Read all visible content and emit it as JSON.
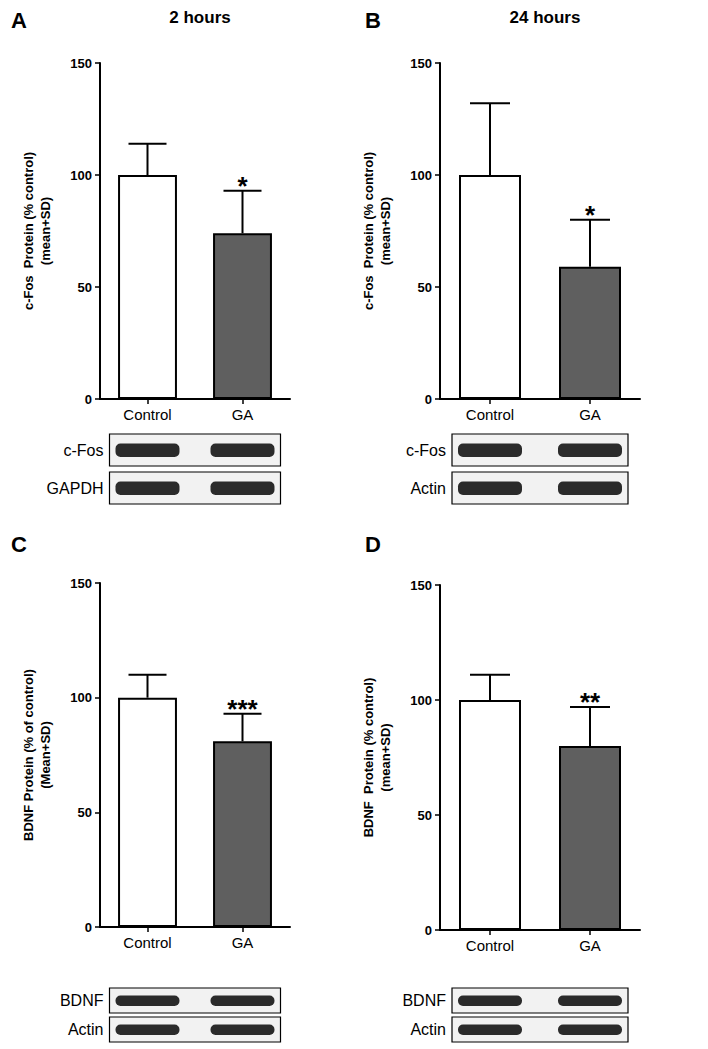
{
  "chart_data": [
    {
      "panel": "A",
      "type": "bar",
      "title": "2 hours",
      "ylabel": [
        "c-Fos  Protein (% control)",
        "(mean+SD)"
      ],
      "categories": [
        "Control",
        "GA"
      ],
      "values": [
        100,
        74
      ],
      "errors": [
        14,
        19
      ],
      "colors": [
        "#ffffff",
        "#5f5f5f"
      ],
      "ylim": [
        0,
        150
      ],
      "yticks": [
        0,
        50,
        100,
        150
      ],
      "grid": false,
      "annotations": [
        {
          "category": "GA",
          "text": "*"
        }
      ],
      "blots": [
        "c-Fos",
        "GAPDH"
      ]
    },
    {
      "panel": "B",
      "type": "bar",
      "title": "24 hours",
      "ylabel": [
        "c-Fos  Protein (% control)",
        "(mean+SD)"
      ],
      "categories": [
        "Control",
        "GA"
      ],
      "values": [
        100,
        59
      ],
      "errors": [
        32,
        21
      ],
      "colors": [
        "#ffffff",
        "#5f5f5f"
      ],
      "ylim": [
        0,
        150
      ],
      "yticks": [
        0,
        50,
        100,
        150
      ],
      "grid": false,
      "annotations": [
        {
          "category": "GA",
          "text": "*"
        }
      ],
      "blots": [
        "c-Fos",
        "Actin"
      ]
    },
    {
      "panel": "C",
      "type": "bar",
      "ylabel": [
        "BDNF Protein (% of control)",
        "(Mean+SD)"
      ],
      "categories": [
        "Control",
        "GA"
      ],
      "values": [
        100,
        81
      ],
      "errors": [
        10,
        12
      ],
      "colors": [
        "#ffffff",
        "#5f5f5f"
      ],
      "ylim": [
        0,
        150
      ],
      "yticks": [
        0,
        50,
        100,
        150
      ],
      "grid": false,
      "annotations": [
        {
          "category": "GA",
          "text": "***"
        }
      ],
      "blots": [
        "BDNF",
        "Actin"
      ]
    },
    {
      "panel": "D",
      "type": "bar",
      "ylabel": [
        "BDNF  Protein (% control)",
        "(mean+SD)"
      ],
      "categories": [
        "Control",
        "GA"
      ],
      "values": [
        100,
        80
      ],
      "errors": [
        11,
        17
      ],
      "colors": [
        "#ffffff",
        "#5f5f5f"
      ],
      "ylim": [
        0,
        150
      ],
      "yticks": [
        0,
        50,
        100,
        150
      ],
      "grid": false,
      "annotations": [
        {
          "category": "GA",
          "text": "**"
        }
      ],
      "blots": [
        "BDNF",
        "Actin"
      ]
    }
  ]
}
